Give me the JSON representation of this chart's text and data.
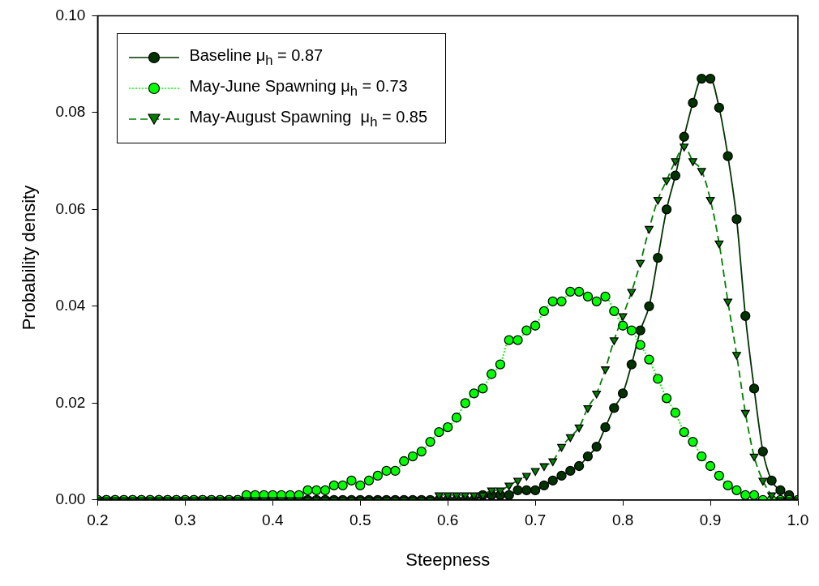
{
  "chart_data": {
    "type": "line",
    "xlabel": "Steepness",
    "ylabel": "Probability density",
    "x": [
      0.2,
      0.21,
      0.22,
      0.23,
      0.24,
      0.25,
      0.26,
      0.27,
      0.28,
      0.29,
      0.3,
      0.31,
      0.32,
      0.33,
      0.34,
      0.35,
      0.36,
      0.37,
      0.38,
      0.39,
      0.4,
      0.41,
      0.42,
      0.43,
      0.44,
      0.45,
      0.46,
      0.47,
      0.48,
      0.49,
      0.5,
      0.51,
      0.52,
      0.53,
      0.54,
      0.55,
      0.56,
      0.57,
      0.58,
      0.59,
      0.6,
      0.61,
      0.62,
      0.63,
      0.64,
      0.65,
      0.66,
      0.67,
      0.68,
      0.69,
      0.7,
      0.71,
      0.72,
      0.73,
      0.74,
      0.75,
      0.76,
      0.77,
      0.78,
      0.79,
      0.8,
      0.81,
      0.82,
      0.83,
      0.84,
      0.85,
      0.86,
      0.87,
      0.88,
      0.89,
      0.9,
      0.91,
      0.92,
      0.93,
      0.94,
      0.95,
      0.96,
      0.97,
      0.98,
      0.99,
      1.0
    ],
    "series": [
      {
        "name": "Baseline μ$_{h}$ = 0.87",
        "color": "#003300",
        "marker": "circle",
        "line_style": "solid",
        "values": [
          0,
          0,
          0,
          0,
          0,
          0,
          0,
          0,
          0,
          0,
          0,
          0,
          0,
          0,
          0,
          0,
          0,
          0,
          0,
          0,
          0,
          0,
          0,
          0,
          0,
          0,
          0,
          0,
          0,
          0,
          0,
          0,
          0,
          0,
          0,
          0,
          0,
          0,
          0,
          0,
          0,
          0,
          0,
          0,
          0.001,
          0.001,
          0.001,
          0.001,
          0.002,
          0.002,
          0.002,
          0.003,
          0.004,
          0.005,
          0.006,
          0.007,
          0.009,
          0.011,
          0.015,
          0.019,
          0.022,
          0.028,
          0.035,
          0.04,
          0.05,
          0.06,
          0.067,
          0.075,
          0.082,
          0.087,
          0.087,
          0.081,
          0.071,
          0.058,
          0.038,
          0.023,
          0.01,
          0.004,
          0.002,
          0.001,
          0
        ]
      },
      {
        "name": "May-June Spawning μ$_{h}$ = 0.73",
        "color": "#00ff00",
        "marker": "circle",
        "line_style": "dotted",
        "values": [
          0,
          0,
          0,
          0,
          0,
          0,
          0,
          0,
          0,
          0,
          0,
          0,
          0,
          0,
          0,
          0,
          0,
          0.001,
          0.001,
          0.001,
          0.001,
          0.001,
          0.001,
          0.001,
          0.002,
          0.002,
          0.002,
          0.003,
          0.003,
          0.004,
          0.003,
          0.004,
          0.005,
          0.006,
          0.006,
          0.008,
          0.009,
          0.01,
          0.012,
          0.014,
          0.015,
          0.017,
          0.02,
          0.022,
          0.023,
          0.026,
          0.028,
          0.033,
          0.033,
          0.035,
          0.036,
          0.039,
          0.041,
          0.041,
          0.043,
          0.043,
          0.042,
          0.041,
          0.042,
          0.039,
          0.036,
          0.035,
          0.032,
          0.029,
          0.025,
          0.021,
          0.018,
          0.014,
          0.012,
          0.009,
          0.007,
          0.005,
          0.003,
          0.002,
          0.001,
          0.001,
          0,
          0,
          0,
          0,
          0
        ]
      },
      {
        "name": "May-August Spawning  μ$_{h}$ = 0.85",
        "color": "#007f00",
        "marker": "triangle",
        "line_style": "dashed",
        "values": [
          0,
          0,
          0,
          0,
          0,
          0,
          0,
          0,
          0,
          0,
          0,
          0,
          0,
          0,
          0,
          0,
          0,
          0,
          0,
          0,
          0,
          0,
          0,
          0,
          0,
          0,
          0,
          0,
          0,
          0,
          0,
          0,
          0,
          0,
          0,
          0,
          0,
          0,
          0,
          0.001,
          0.001,
          0.001,
          0.001,
          0.001,
          0.001,
          0.002,
          0.002,
          0.003,
          0.004,
          0.005,
          0.006,
          0.007,
          0.008,
          0.011,
          0.013,
          0.015,
          0.019,
          0.022,
          0.027,
          0.033,
          0.038,
          0.043,
          0.049,
          0.056,
          0.062,
          0.066,
          0.07,
          0.073,
          0.07,
          0.068,
          0.062,
          0.053,
          0.041,
          0.03,
          0.018,
          0.009,
          0.004,
          0.001,
          0,
          0,
          0
        ]
      }
    ],
    "xlim": [
      0.2,
      1.0
    ],
    "xticks": [
      0.2,
      0.3,
      0.4,
      0.5,
      0.6,
      0.7,
      0.8,
      0.9,
      {
        "value": 1.0,
        "label": "1.0"
      }
    ],
    "ylim": [
      0,
      0.1
    ],
    "yticks": [
      {
        "value": 0,
        "label": "0.00"
      },
      {
        "value": 0.02,
        "label": "0.02"
      },
      {
        "value": 0.04,
        "label": "0.04"
      },
      {
        "value": 0.06,
        "label": "0.06"
      },
      {
        "value": 0.08,
        "label": "0.08"
      },
      {
        "value": 0.1,
        "label": "0.10"
      }
    ],
    "grid": false,
    "legend": "top left"
  }
}
